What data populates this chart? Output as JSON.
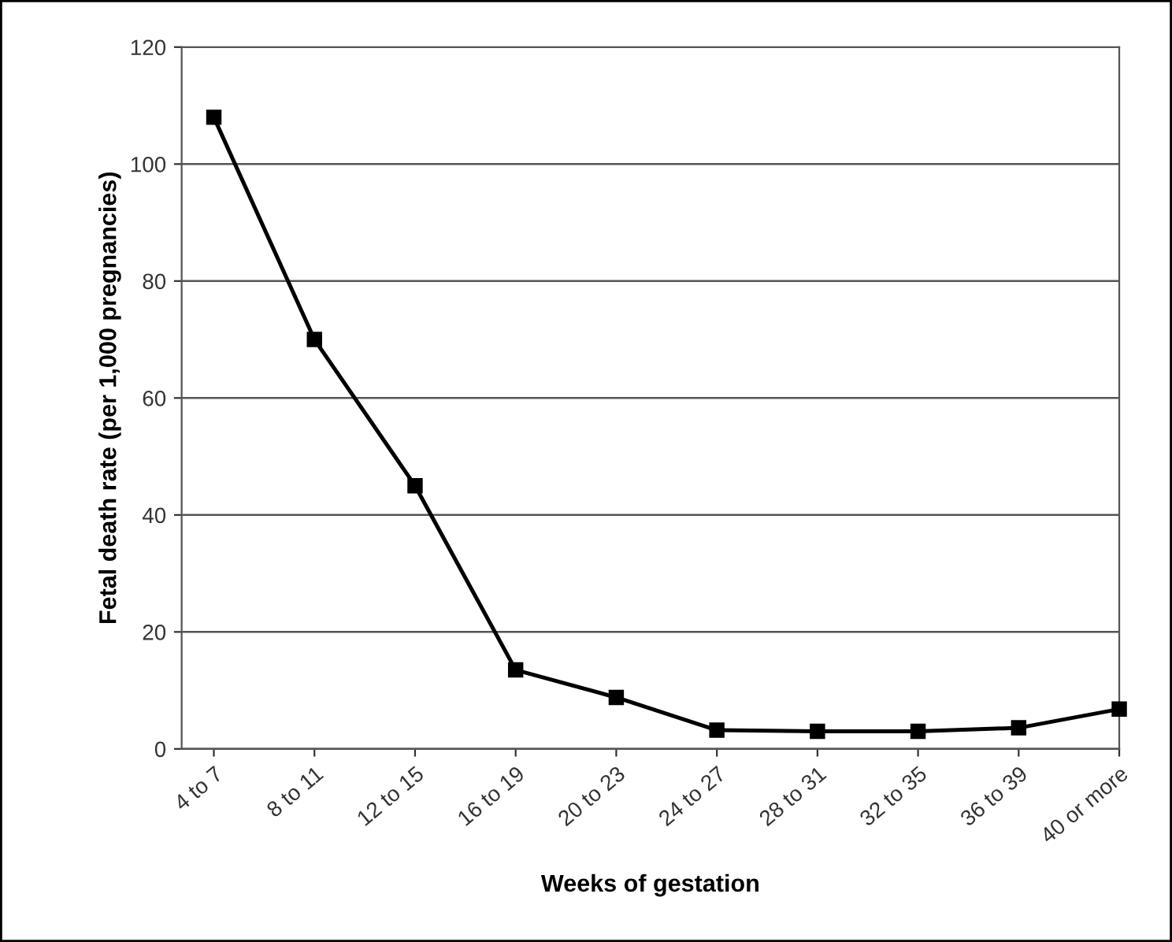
{
  "chart_data": {
    "type": "line",
    "xlabel": "Weeks of gestation",
    "ylabel": "Fetal death rate (per 1,000 pregnancies)",
    "categories": [
      "4 to 7",
      "8 to 11",
      "12 to 15",
      "16 to 19",
      "20 to 23",
      "24 to 27",
      "28 to 31",
      "32 to 35",
      "36 to 39",
      "40 or more"
    ],
    "series": [
      {
        "color": "#000000",
        "values": [
          108,
          70,
          45,
          13.5,
          8.8,
          3.2,
          3,
          3,
          3.6,
          6.8
        ]
      }
    ],
    "ylim": [
      0,
      120
    ],
    "yticks": [
      0,
      20,
      40,
      60,
      80,
      100,
      120
    ],
    "grid": "y",
    "marker": "square",
    "line_style": "solid"
  }
}
